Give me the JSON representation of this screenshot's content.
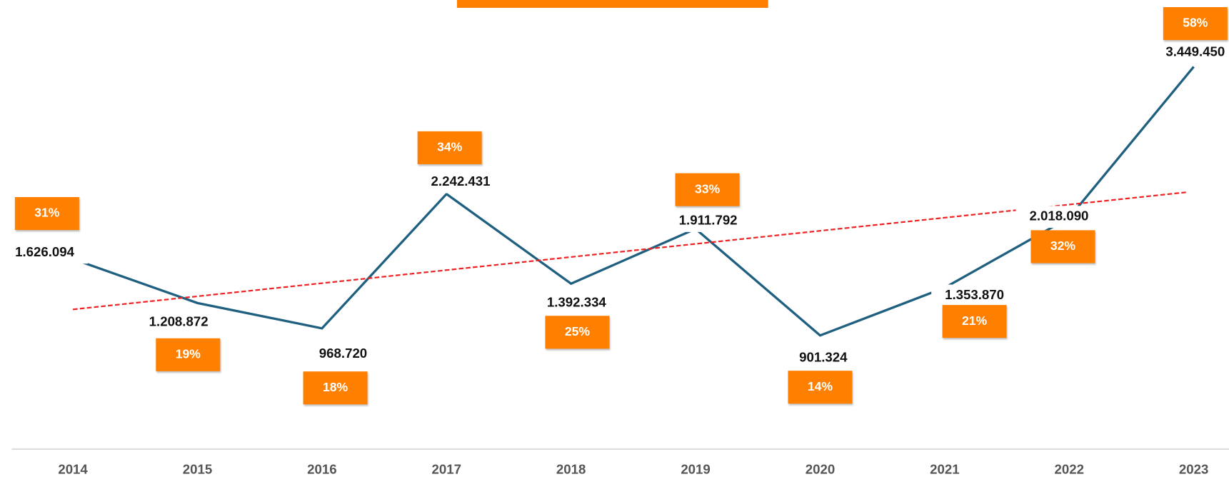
{
  "chart_data": {
    "type": "line",
    "categories": [
      "2014",
      "2015",
      "2016",
      "2017",
      "2018",
      "2019",
      "2020",
      "2021",
      "2022",
      "2023"
    ],
    "values": [
      1626094,
      1208872,
      968720,
      2242431,
      1392334,
      1911792,
      901324,
      1353870,
      2018090,
      3449450
    ],
    "value_labels": [
      "1.626.094",
      "1.208.872",
      "968.720",
      "2.242.431",
      "1.392.334",
      "1.911.792",
      "901.324",
      "1.353.870",
      "2.018.090",
      "3.449.450"
    ],
    "percentages": [
      31,
      19,
      18,
      34,
      25,
      33,
      14,
      21,
      32,
      58
    ],
    "percentage_labels": [
      "31%",
      "19%",
      "18%",
      "34%",
      "25%",
      "33%",
      "14%",
      "21%",
      "32%",
      "58%"
    ],
    "color": "#1f5f7f",
    "box_color": "#ff8000",
    "trend_color": "#ee2222",
    "trendline": true,
    "ylim": [
      0,
      4000000
    ]
  }
}
